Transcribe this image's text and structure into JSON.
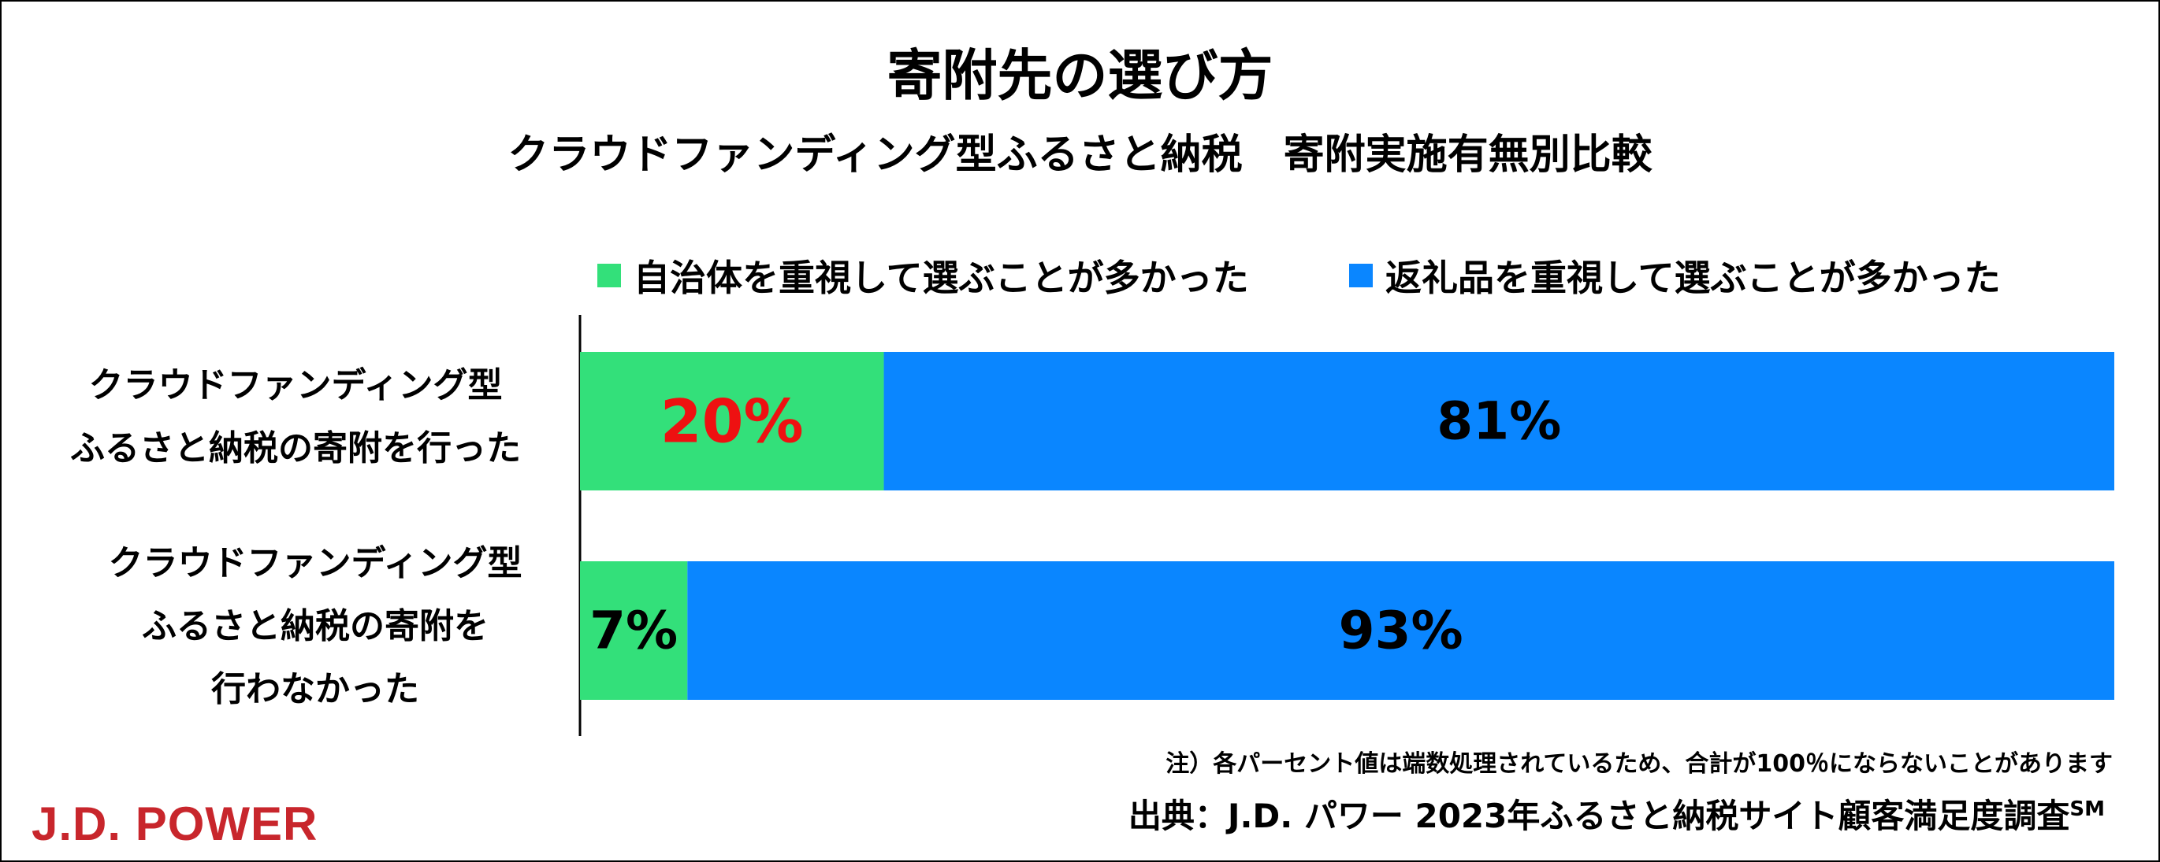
{
  "colors": {
    "green": "#33e07a",
    "blue": "#0a86ff",
    "highlight_red": "#ee1111",
    "text": "#000000",
    "brand": "#c8262c"
  },
  "title": "寄附先の選び方",
  "subtitle": "クラウドファンディング型ふるさと納税　寄附実施有無別比較",
  "legend": [
    {
      "label": "自治体を重視して選ぶことが多かった",
      "color": "#33e07a"
    },
    {
      "label": "返礼品を重視して選ぶことが多かった",
      "color": "#0a86ff"
    }
  ],
  "chart_data": {
    "type": "bar",
    "orientation": "horizontal",
    "stacked": true,
    "categories": [
      "クラウドファンディング型 ふるさと納税の寄附を行った",
      "クラウドファンディング型 ふるさと納税の寄附を 行わなかった"
    ],
    "category_lines": [
      [
        "クラウドファンディング型",
        "ふるさと納税の寄附を行った"
      ],
      [
        "クラウドファンディング型",
        "ふるさと納税の寄附を",
        "行わなかった"
      ]
    ],
    "series": [
      {
        "name": "自治体を重視して選ぶことが多かった",
        "values": [
          20,
          7
        ],
        "labels": [
          "20%",
          "7%"
        ],
        "color": "#33e07a"
      },
      {
        "name": "返礼品を重視して選ぶことが多かった",
        "values": [
          81,
          93
        ],
        "labels": [
          "81%",
          "93%"
        ],
        "color": "#0a86ff"
      }
    ],
    "highlight": {
      "series": 0,
      "index": 0,
      "color": "#ee1111"
    },
    "xlim": [
      0,
      100
    ],
    "grid": false,
    "legend_position": "top"
  },
  "footer": {
    "note": "注）各パーセント値は端数処理されているため、合計が100％にならないことがあります",
    "source": "出典：J.D. パワー 2023年ふるさと納税サイト顧客満足度調査",
    "source_mark": "SM",
    "brand": "J.D. POWER"
  }
}
